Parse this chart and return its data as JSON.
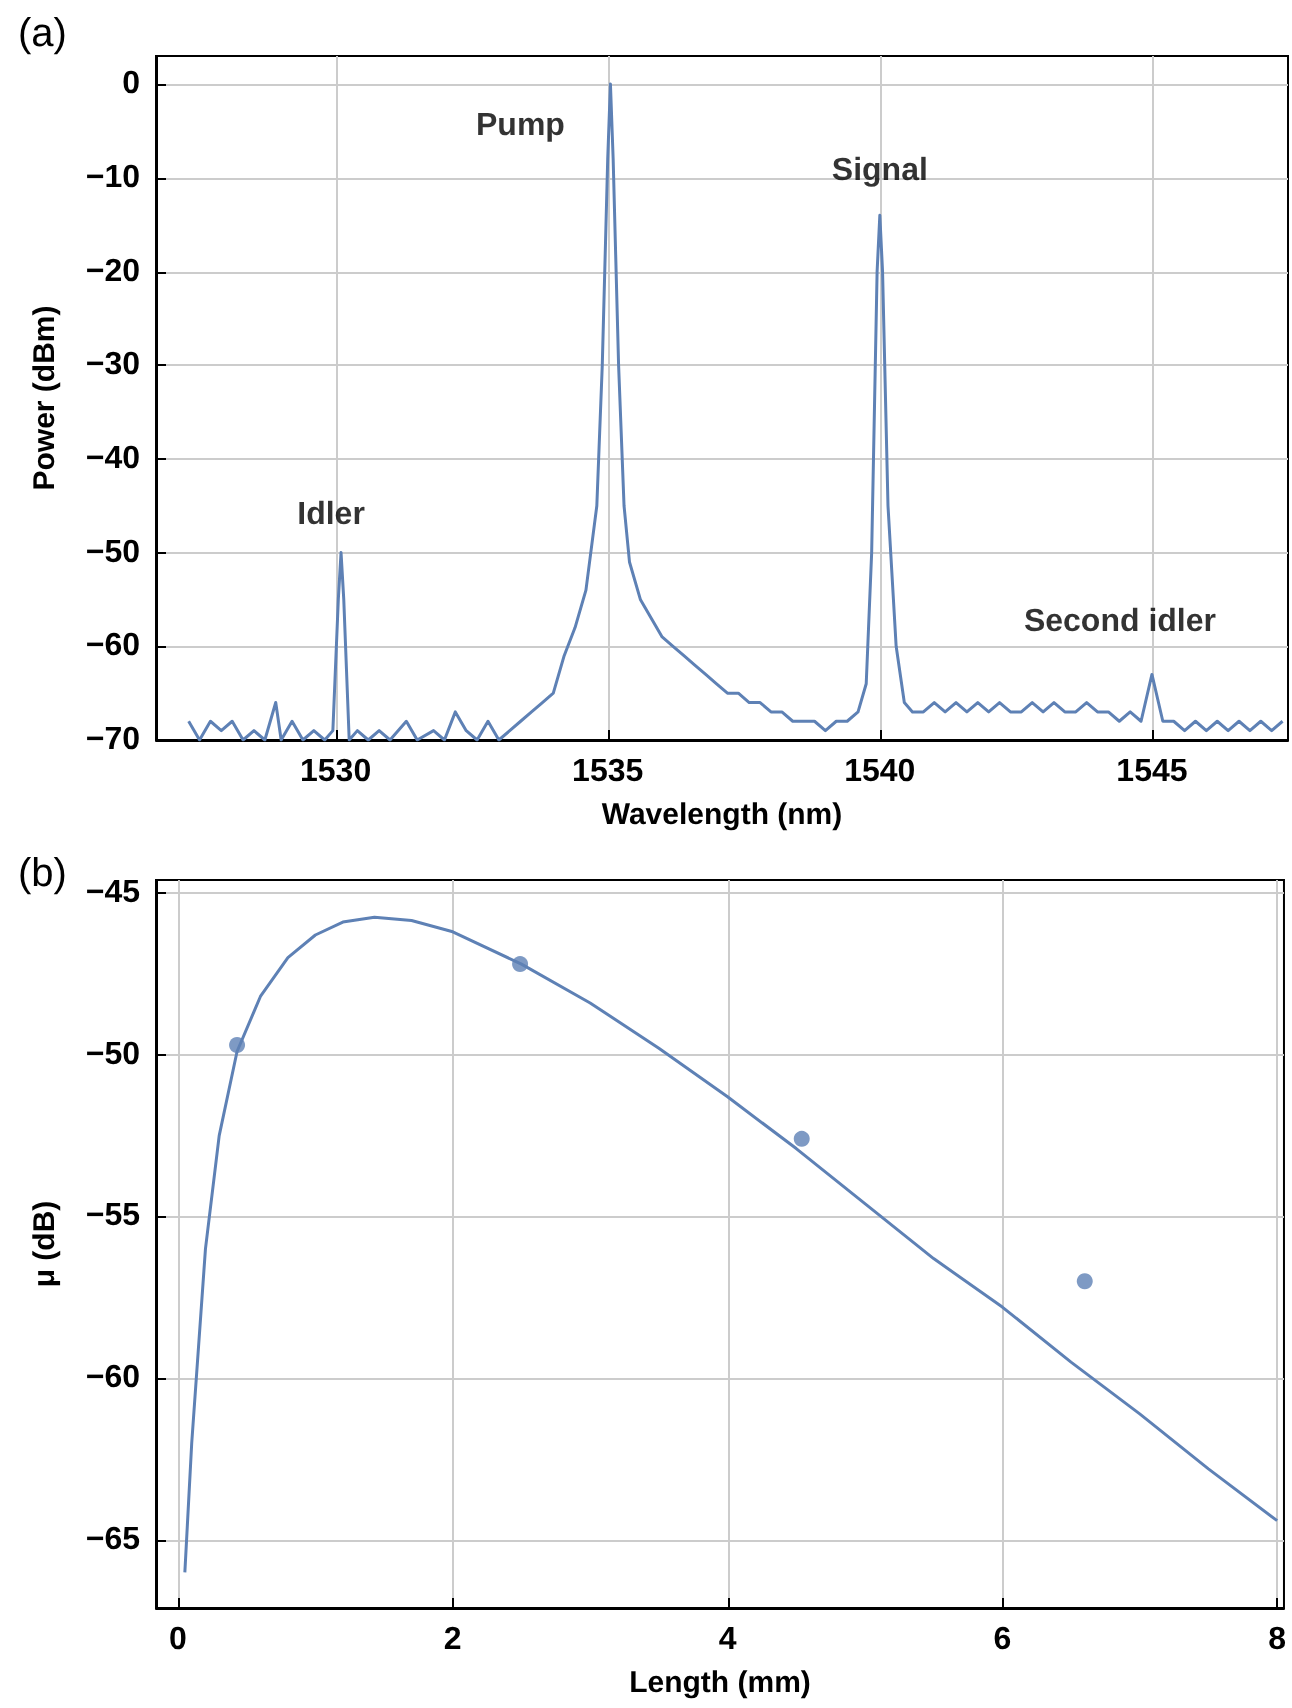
{
  "chart_data": [
    {
      "type": "line",
      "title": "(a)",
      "xlabel": "Wavelength (nm)",
      "ylabel": "Power (dBm)",
      "xlim": [
        1526.7,
        1547.5
      ],
      "xticks": [
        1530,
        1535,
        1540,
        1545
      ],
      "ylim": [
        -70,
        3
      ],
      "yticks": [
        -70,
        -60,
        -50,
        -40,
        -30,
        -20,
        -10,
        0
      ],
      "grid": true,
      "marker": "none",
      "line_style": "solid",
      "annotations": [
        {
          "text": "Idler",
          "x": 1530.1,
          "y": -50
        },
        {
          "text": "Pump",
          "x": 1535.05,
          "y": 0
        },
        {
          "text": "Signal",
          "x": 1540.0,
          "y": -14
        },
        {
          "text": "Second idler",
          "x": 1545.0,
          "y": -63
        }
      ],
      "series": [
        {
          "color": "#5e81b5",
          "x": [
            1527.3,
            1527.5,
            1527.7,
            1527.9,
            1528.1,
            1528.3,
            1528.5,
            1528.7,
            1528.9,
            1529.0,
            1529.2,
            1529.4,
            1529.6,
            1529.8,
            1529.95,
            1530.05,
            1530.1,
            1530.15,
            1530.25,
            1530.4,
            1530.6,
            1530.8,
            1531.0,
            1531.3,
            1531.5,
            1531.8,
            1532.0,
            1532.2,
            1532.4,
            1532.6,
            1532.8,
            1533.0,
            1533.2,
            1533.4,
            1533.6,
            1533.8,
            1534.0,
            1534.2,
            1534.4,
            1534.6,
            1534.8,
            1534.9,
            1535.0,
            1535.05,
            1535.1,
            1535.2,
            1535.3,
            1535.4,
            1535.6,
            1535.8,
            1536.0,
            1536.2,
            1536.4,
            1536.6,
            1536.8,
            1537.0,
            1537.2,
            1537.4,
            1537.6,
            1537.8,
            1538.0,
            1538.2,
            1538.4,
            1538.6,
            1538.8,
            1539.0,
            1539.2,
            1539.4,
            1539.6,
            1539.75,
            1539.85,
            1539.95,
            1540.0,
            1540.05,
            1540.15,
            1540.3,
            1540.45,
            1540.6,
            1540.8,
            1541.0,
            1541.2,
            1541.4,
            1541.6,
            1541.8,
            1542.0,
            1542.2,
            1542.4,
            1542.6,
            1542.8,
            1543.0,
            1543.2,
            1543.4,
            1543.6,
            1543.8,
            1544.0,
            1544.2,
            1544.4,
            1544.6,
            1544.8,
            1545.0,
            1545.2,
            1545.4,
            1545.6,
            1545.8,
            1546.0,
            1546.2,
            1546.4,
            1546.6,
            1546.8,
            1547.0,
            1547.2,
            1547.4
          ],
          "values": [
            -68,
            -70,
            -68,
            -69,
            -68,
            -70,
            -69,
            -70,
            -66,
            -70,
            -68,
            -70,
            -69,
            -70,
            -69,
            -55,
            -50,
            -55,
            -70,
            -69,
            -70,
            -69,
            -70,
            -68,
            -70,
            -69,
            -70,
            -67,
            -69,
            -70,
            -68,
            -70,
            -69,
            -68,
            -67,
            -66,
            -65,
            -61,
            -58,
            -54,
            -45,
            -30,
            -8,
            0,
            -8,
            -30,
            -45,
            -51,
            -55,
            -57,
            -59,
            -60,
            -61,
            -62,
            -63,
            -64,
            -65,
            -65,
            -66,
            -66,
            -67,
            -67,
            -68,
            -68,
            -68,
            -69,
            -68,
            -68,
            -67,
            -64,
            -50,
            -20,
            -14,
            -20,
            -45,
            -60,
            -66,
            -67,
            -67,
            -66,
            -67,
            -66,
            -67,
            -66,
            -67,
            -66,
            -67,
            -67,
            -66,
            -67,
            -66,
            -67,
            -67,
            -66,
            -67,
            -67,
            -68,
            -67,
            -68,
            -63,
            -68,
            -68,
            -69,
            -68,
            -69,
            -68,
            -69,
            -68,
            -69,
            -68,
            -69,
            -68
          ]
        }
      ]
    },
    {
      "type": "scatter",
      "title": "(b)",
      "xlabel": "Length (mm)",
      "ylabel": "μ (dB)",
      "xlim": [
        -0.16,
        8.05
      ],
      "xticks": [
        0,
        2,
        4,
        6,
        8
      ],
      "ylim": [
        -67.1,
        -44.6
      ],
      "yticks": [
        -65,
        -60,
        -55,
        -50,
        -45
      ],
      "grid": true,
      "series": [
        {
          "type": "scatter",
          "marker": "circle",
          "color": "#5e81b5",
          "x": [
            0.43,
            2.49,
            4.54,
            6.6
          ],
          "values": [
            -49.7,
            -47.2,
            -52.6,
            -57.0
          ]
        },
        {
          "type": "line",
          "marker": "none",
          "color": "#5e81b5",
          "x": [
            0.05,
            0.1,
            0.2,
            0.3,
            0.43,
            0.6,
            0.8,
            1.0,
            1.2,
            1.43,
            1.7,
            2.0,
            2.5,
            3.0,
            3.5,
            4.0,
            4.5,
            5.0,
            5.5,
            6.0,
            6.5,
            7.0,
            7.5,
            8.0
          ],
          "values": [
            -66,
            -62,
            -56,
            -52.5,
            -49.9,
            -48.2,
            -47,
            -46.3,
            -45.9,
            -45.75,
            -45.85,
            -46.2,
            -47.2,
            -48.4,
            -49.8,
            -51.3,
            -52.9,
            -54.6,
            -56.3,
            -57.8,
            -59.5,
            -61.1,
            -62.8,
            -64.4
          ]
        }
      ]
    }
  ]
}
